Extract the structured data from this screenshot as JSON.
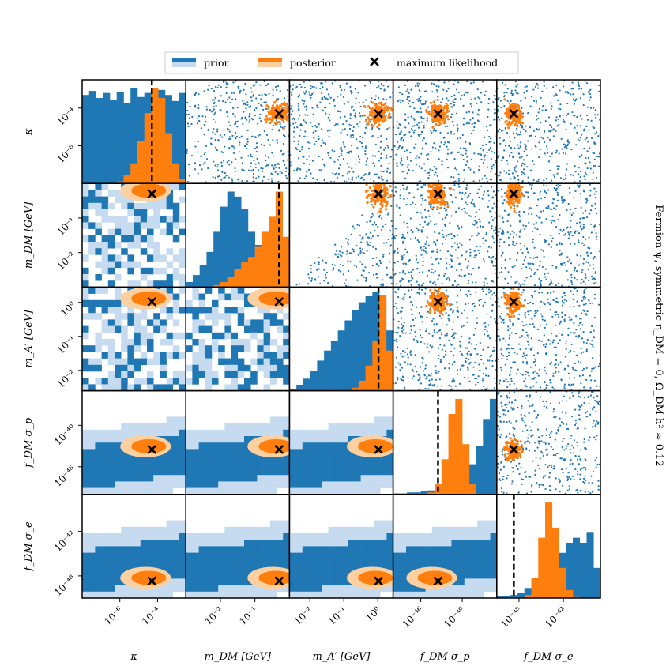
{
  "chart_data": {
    "type": "corner",
    "parameters": [
      {
        "name": "kappa",
        "label": "κ",
        "ticks": [
          "10⁻⁶",
          "10⁻⁴"
        ],
        "tick_values": [
          -6,
          -4
        ],
        "range_log10": [
          -8,
          -2.5
        ],
        "max_likelihood_log10": -4.3
      },
      {
        "name": "m_DM",
        "label": "m_DM [GeV]",
        "ticks": [
          "10⁻²",
          "10⁻¹"
        ],
        "tick_values": [
          -2,
          -1
        ],
        "range_log10": [
          -3.0,
          0.0
        ],
        "max_likelihood_log10": -0.3
      },
      {
        "name": "m_Aprime",
        "label": "m_A′ [GeV]",
        "ticks": [
          "10⁻²",
          "10⁻¹",
          "10⁰"
        ],
        "tick_values": [
          -2,
          -1,
          0
        ],
        "range_log10": [
          -2.6,
          0.45
        ],
        "max_likelihood_log10": 0.02
      },
      {
        "name": "fDM_sigma_p",
        "label": "f_DM σ_p",
        "ticks": [
          "10⁻⁴⁶",
          "10⁻⁴⁰"
        ],
        "tick_values": [
          -46,
          -40
        ],
        "range_log10": [
          -50,
          -35
        ],
        "max_likelihood_log10": -43.5
      },
      {
        "name": "fDM_sigma_e",
        "label": "f_DM σ_e",
        "ticks": [
          "10⁻⁴⁸",
          "10⁻⁴²"
        ],
        "tick_values": [
          -48,
          -42
        ],
        "range_log10": [
          -51,
          -37
        ],
        "max_likelihood_log10": -48.7
      }
    ],
    "diagonal": {
      "prior_hist": [
        [
          0.88,
          0.92,
          0.85,
          0.9,
          0.83,
          0.91,
          0.8,
          0.95,
          0.86,
          0.9,
          0.84,
          0.93,
          0.88,
          0.82,
          0.9
        ],
        [
          0.05,
          0.12,
          0.22,
          0.35,
          0.55,
          0.8,
          0.95,
          0.9,
          0.78,
          0.55,
          0.42,
          0.32,
          0.25,
          0.18,
          0.1
        ],
        [
          0.02,
          0.06,
          0.12,
          0.2,
          0.3,
          0.4,
          0.5,
          0.6,
          0.7,
          0.8,
          0.88,
          0.94,
          0.98,
          0.9,
          0.6
        ],
        [
          0.01,
          0.01,
          0.02,
          0.02,
          0.03,
          0.04,
          0.05,
          0.07,
          0.1,
          0.15,
          0.22,
          0.3,
          0.48,
          0.75,
          0.95
        ],
        [
          0.02,
          0.02,
          0.03,
          0.05,
          0.1,
          0.14,
          0.2,
          0.28,
          0.35,
          0.45,
          0.55,
          0.6,
          0.55,
          0.65,
          0.3
        ]
      ],
      "posterior_hist": [
        [
          0,
          0,
          0,
          0,
          0,
          0.02,
          0.08,
          0.2,
          0.42,
          0.7,
          0.95,
          0.85,
          0.5,
          0.2,
          0.04
        ],
        [
          0,
          0,
          0,
          0,
          0.02,
          0.05,
          0.1,
          0.18,
          0.25,
          0.3,
          0.4,
          0.55,
          0.7,
          0.95,
          0.5
        ],
        [
          0,
          0,
          0,
          0,
          0,
          0,
          0,
          0,
          0,
          0.03,
          0.1,
          0.25,
          0.5,
          0.95,
          0.4
        ],
        [
          0,
          0,
          0,
          0,
          0,
          0.02,
          0.1,
          0.35,
          0.8,
          0.95,
          0.5,
          0.1,
          0,
          0,
          0
        ],
        [
          0,
          0,
          0,
          0,
          0.03,
          0.2,
          0.6,
          0.95,
          0.7,
          0.3,
          0.08,
          0.01,
          0,
          0,
          0
        ]
      ]
    },
    "series": [
      {
        "name": "prior",
        "color": "#1f77b4",
        "light_color": "#c6dbef"
      },
      {
        "name": "posterior",
        "color": "#ff7f0e",
        "light_color": "#fdd0a2"
      },
      {
        "name": "maximum likelihood",
        "marker": "x",
        "color": "#000000"
      }
    ],
    "legend": {
      "placement": "top-center",
      "entries": [
        "prior",
        "posterior",
        "maximum likelihood"
      ]
    },
    "side_title": "Fermion ψ, symmetric η_DM = 0, Ω_DM h² ≈ 0.12"
  }
}
